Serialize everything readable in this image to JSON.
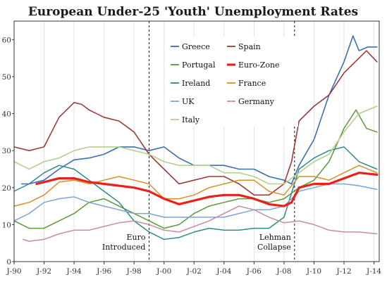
{
  "chart_data": {
    "type": "line",
    "title": "European Under-25 'Youth' Unemployment Rates",
    "xlabel": "",
    "ylabel": "",
    "xlim": [
      1990.0,
      2014.35
    ],
    "ylim": [
      0,
      65
    ],
    "y_ticks": [
      0,
      10,
      20,
      30,
      40,
      50,
      60
    ],
    "x_ticks": [
      {
        "label": "J-90",
        "x": 1990
      },
      {
        "label": "J-92",
        "x": 1992
      },
      {
        "label": "J-94",
        "x": 1994
      },
      {
        "label": "J-96",
        "x": 1996
      },
      {
        "label": "J-98",
        "x": 1998
      },
      {
        "label": "J-00",
        "x": 2000
      },
      {
        "label": "J-02",
        "x": 2002
      },
      {
        "label": "J-04",
        "x": 2004
      },
      {
        "label": "J-06",
        "x": 2006
      },
      {
        "label": "J-08",
        "x": 2008
      },
      {
        "label": "J-10",
        "x": 2010
      },
      {
        "label": "J-12",
        "x": 2012
      },
      {
        "label": "J-14",
        "x": 2014
      }
    ],
    "grid": "vertical",
    "legend_position": "top-right",
    "annotations": [
      {
        "name": "euro-introduced",
        "x": 1999.0,
        "line1": "Euro",
        "line2": "Introduced"
      },
      {
        "name": "lehman-collapse",
        "x": 2008.7,
        "line1": "Lehman",
        "line2": "Collapse"
      }
    ],
    "series": [
      {
        "name": "Greece",
        "color": "#3a6fb0",
        "width": 1.6,
        "x": [
          1990.5,
          1991,
          1992,
          1993,
          1994,
          1995,
          1996,
          1997,
          1998,
          1999,
          2000,
          2001,
          2002,
          2003,
          2004,
          2005,
          2006,
          2007,
          2008,
          2008.5,
          2009,
          2010,
          2011,
          2012,
          2012.6,
          2013,
          2013.6,
          2014.2
        ],
        "y": [
          21,
          21,
          22,
          25,
          27.5,
          28,
          29,
          31,
          31,
          30,
          31,
          28,
          26,
          26,
          26,
          25,
          25,
          23,
          22,
          21,
          26,
          33,
          45,
          54,
          61,
          57,
          58,
          58
        ]
      },
      {
        "name": "Spain",
        "color": "#9b3b3b",
        "width": 1.6,
        "x": [
          1990,
          1991,
          1992,
          1993,
          1994,
          1994.5,
          1995,
          1996,
          1997,
          1998,
          1999,
          2000,
          2001,
          2002,
          2003,
          2004,
          2005,
          2006,
          2007,
          2008,
          2008.5,
          2009,
          2010,
          2011,
          2012,
          2013,
          2013.5,
          2014.2
        ],
        "y": [
          31,
          30,
          31,
          39,
          43,
          42.5,
          41,
          39,
          38,
          35,
          29,
          25,
          21,
          22,
          23,
          23,
          21,
          18,
          18,
          21,
          27,
          38,
          42,
          45,
          51,
          55,
          57,
          54
        ]
      },
      {
        "name": "Portugal",
        "color": "#5a9a3a",
        "width": 1.5,
        "x": [
          1990,
          1991,
          1992,
          1993,
          1994,
          1995,
          1996,
          1997,
          1998,
          1999,
          2000,
          2001,
          2002,
          2003,
          2004,
          2005,
          2006,
          2007,
          2008,
          2009,
          2010,
          2011,
          2012,
          2012.8,
          2013.5,
          2014.2
        ],
        "y": [
          11,
          9,
          9,
          11,
          13,
          16,
          17,
          15,
          13,
          11,
          9,
          10,
          13,
          15,
          16,
          17,
          17,
          16,
          17,
          20,
          22,
          27,
          36,
          41,
          36,
          35
        ]
      },
      {
        "name": "Euro-Zone",
        "color": "#e8211b",
        "width": 3.2,
        "x": [
          1991.5,
          1992,
          1993,
          1994,
          1995,
          1996,
          1997,
          1998,
          1999,
          2000,
          2001,
          2002,
          2003,
          2004,
          2005,
          2006,
          2007,
          2008,
          2008.5,
          2009,
          2010,
          2011,
          2012,
          2013,
          2014.2
        ],
        "y": [
          21,
          21.5,
          22.5,
          22.5,
          21.5,
          21,
          20.5,
          20,
          19,
          17,
          15.5,
          16.5,
          17.5,
          18,
          18,
          17,
          15.5,
          15,
          16,
          20,
          21,
          21,
          22.5,
          24,
          23.5
        ]
      },
      {
        "name": "Ireland",
        "color": "#2e8b8b",
        "width": 1.5,
        "x": [
          1990,
          1991,
          1992,
          1993,
          1994,
          1995,
          1996,
          1997,
          1998,
          1999,
          2000,
          2001,
          2002,
          2003,
          2004,
          2005,
          2006,
          2007,
          2008,
          2009,
          2010,
          2011,
          2012,
          2013,
          2014.2
        ],
        "y": [
          19,
          21,
          24,
          26,
          25,
          22,
          19,
          16,
          11,
          8,
          6,
          6.5,
          8,
          9,
          8.5,
          8.5,
          9,
          9,
          12,
          25,
          28,
          30,
          31,
          27,
          25
        ]
      },
      {
        "name": "France",
        "color": "#d4902a",
        "width": 1.5,
        "x": [
          1990,
          1991,
          1992,
          1993,
          1994,
          1995,
          1996,
          1997,
          1998,
          1999,
          2000,
          2001,
          2002,
          2003,
          2004,
          2005,
          2006,
          2007,
          2008,
          2009,
          2010,
          2011,
          2012,
          2013,
          2014.2
        ],
        "y": [
          15,
          16,
          18,
          21.5,
          22,
          21,
          22,
          23,
          22,
          21,
          17,
          17,
          18,
          20,
          21,
          22,
          22,
          19,
          18,
          23,
          23,
          22,
          24,
          26,
          24
        ]
      },
      {
        "name": "UK",
        "color": "#7aa6d6",
        "width": 1.5,
        "x": [
          1990,
          1991,
          1992,
          1993,
          1994,
          1995,
          1996,
          1997,
          1998,
          1999,
          2000,
          2001,
          2002,
          2003,
          2004,
          2005,
          2006,
          2007,
          2008,
          2009,
          2010,
          2011,
          2012,
          2013,
          2014.2
        ],
        "y": [
          11,
          13,
          16,
          17,
          17.5,
          16,
          15,
          14,
          13,
          13,
          12,
          12,
          12,
          12,
          12,
          13,
          14,
          14,
          15,
          19,
          20,
          21,
          21,
          20.5,
          19.5
        ]
      },
      {
        "name": "Germany",
        "color": "#c98c9b",
        "width": 1.5,
        "x": [
          1990.6,
          1991,
          1992,
          1993,
          1994,
          1995,
          1996,
          1997,
          1998,
          1999,
          2000,
          2001,
          2002,
          2003,
          2004,
          2005,
          2006,
          2007,
          2008,
          2009,
          2010,
          2011,
          2012,
          2013,
          2014.2
        ],
        "y": [
          6,
          5.5,
          6,
          7.5,
          8.5,
          8.5,
          9.5,
          10.5,
          11,
          10,
          8.5,
          8,
          9.5,
          11,
          13,
          15,
          14,
          12,
          10.5,
          11,
          10,
          8.5,
          8,
          8,
          7.5
        ]
      },
      {
        "name": "Italy",
        "color": "#b5cf8e",
        "width": 1.6,
        "x": [
          1990,
          1991,
          1992,
          1993,
          1994,
          1995,
          1996,
          1997,
          1998,
          1999,
          2000,
          2001,
          2002,
          2003,
          2004,
          2005,
          2006,
          2007,
          2008,
          2009,
          2010,
          2011,
          2012,
          2013,
          2014.2
        ],
        "y": [
          27,
          25,
          27,
          28,
          30,
          31,
          31,
          31,
          30,
          29,
          27,
          26,
          26,
          26,
          24,
          24,
          23,
          21,
          21,
          24,
          27,
          29,
          35,
          40,
          42
        ]
      }
    ]
  }
}
